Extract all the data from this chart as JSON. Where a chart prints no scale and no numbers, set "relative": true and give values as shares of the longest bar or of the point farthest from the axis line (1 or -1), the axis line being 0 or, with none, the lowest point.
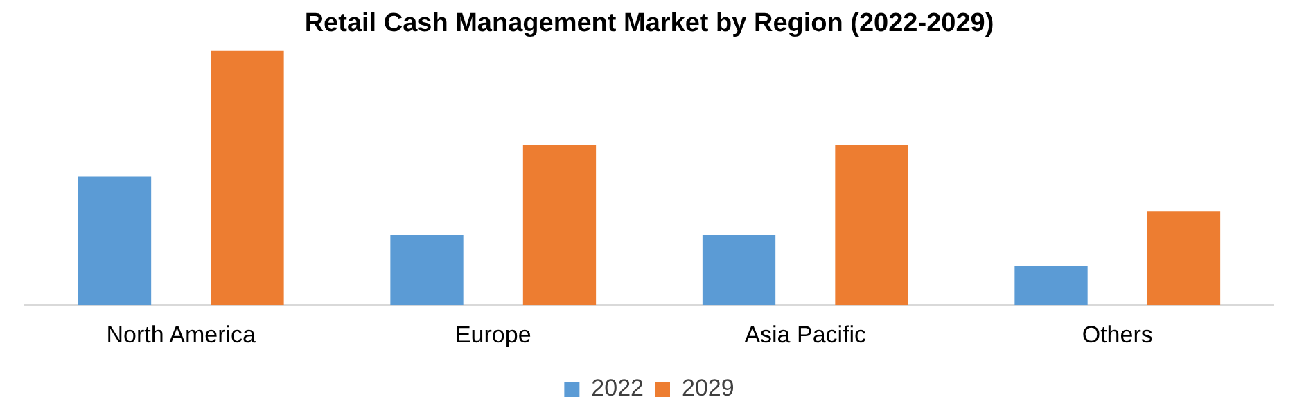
{
  "chart_data": {
    "type": "bar",
    "title": "Retail Cash Management Market by Region (2022-2029)",
    "categories": [
      "North America",
      "Europe",
      "Asia Pacific",
      "Others"
    ],
    "relative": true,
    "legend": "bottom",
    "grid": false,
    "series": [
      {
        "name": "2022",
        "color": "#5b9bd5",
        "values": [
          0.505,
          0.275,
          0.275,
          0.155
        ]
      },
      {
        "name": "2029",
        "color": "#ed7d31",
        "values": [
          1,
          0.63,
          0.63,
          0.37
        ]
      }
    ]
  }
}
